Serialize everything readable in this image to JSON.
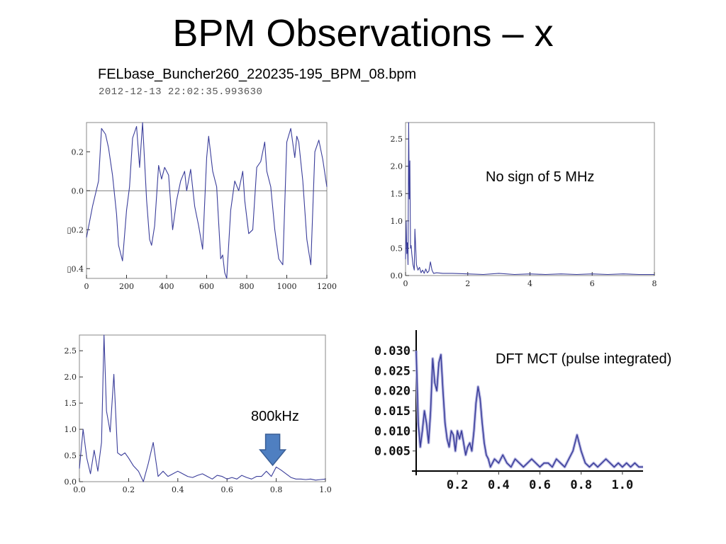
{
  "slide": {
    "title": "BPM Observations – x",
    "filename": "FELbase_Buncher260_220235-195_BPM_08.bpm",
    "timestamp": "2012-12-13 22:02:35.993630"
  },
  "colors": {
    "series": "#3a3d9a",
    "axis": "#222222",
    "frame": "#888888",
    "arrow_fill": "#4f7fc1",
    "arrow_stroke": "#3a5e95"
  },
  "chart_data": [
    {
      "type": "line",
      "xlim": [
        0,
        1200
      ],
      "ylim": [
        -0.45,
        0.35
      ],
      "xticks": [
        0,
        200,
        400,
        600,
        800,
        1000,
        1200
      ],
      "yticks": [
        0.2,
        0.0,
        -0.2,
        -0.4
      ],
      "ytick_labels": [
        "0.2",
        "0.0",
        "▯0.2",
        "▯0.4"
      ],
      "zero_line": true,
      "series": [
        {
          "x": [
            0,
            30,
            60,
            75,
            95,
            110,
            130,
            150,
            160,
            180,
            200,
            215,
            230,
            250,
            265,
            280,
            300,
            315,
            325,
            340,
            360,
            375,
            390,
            410,
            430,
            450,
            470,
            490,
            500,
            520,
            540,
            560,
            580,
            600,
            610,
            630,
            650,
            670,
            680,
            690,
            700,
            720,
            740,
            760,
            780,
            790,
            810,
            830,
            850,
            870,
            890,
            900,
            920,
            940,
            960,
            980,
            1000,
            1020,
            1040,
            1050,
            1060,
            1080,
            1100,
            1120,
            1140,
            1160,
            1180,
            1200
          ],
          "y": [
            -0.24,
            -0.08,
            0.05,
            0.32,
            0.29,
            0.22,
            0.08,
            -0.12,
            -0.28,
            -0.36,
            -0.1,
            0.02,
            0.27,
            0.33,
            0.12,
            0.35,
            -0.05,
            -0.25,
            -0.28,
            -0.18,
            0.13,
            0.06,
            0.12,
            0.08,
            -0.2,
            -0.05,
            0.05,
            0.1,
            0.0,
            0.11,
            -0.08,
            -0.18,
            -0.3,
            0.17,
            0.28,
            0.1,
            0.02,
            -0.35,
            -0.33,
            -0.42,
            -0.46,
            -0.1,
            0.05,
            0.0,
            0.1,
            -0.05,
            -0.22,
            -0.2,
            0.12,
            0.15,
            0.25,
            0.1,
            0.02,
            -0.2,
            -0.35,
            -0.38,
            0.25,
            0.32,
            0.17,
            0.28,
            0.25,
            0.05,
            -0.25,
            -0.38,
            0.2,
            0.26,
            0.16,
            0.02
          ]
        }
      ]
    },
    {
      "type": "line",
      "xlim": [
        0,
        8
      ],
      "ylim": [
        0,
        2.8
      ],
      "xticks": [
        0,
        2,
        4,
        6,
        8
      ],
      "yticks": [
        0.0,
        0.5,
        1.0,
        1.5,
        2.0,
        2.5
      ],
      "ytick_labels": [
        "0.0",
        "0.5",
        "1.0",
        "1.5",
        "2.0",
        "2.5"
      ],
      "annotation": "No sign of 5 MHz",
      "series": [
        {
          "x": [
            0,
            0.02,
            0.04,
            0.06,
            0.08,
            0.1,
            0.12,
            0.14,
            0.16,
            0.18,
            0.2,
            0.24,
            0.28,
            0.3,
            0.35,
            0.4,
            0.45,
            0.5,
            0.55,
            0.6,
            0.65,
            0.7,
            0.75,
            0.8,
            0.85,
            0.9,
            1.0,
            1.2,
            1.5,
            2.0,
            2.5,
            3.0,
            3.5,
            4.0,
            4.5,
            5.0,
            5.5,
            6.0,
            6.5,
            7.0,
            7.5,
            8.0
          ],
          "y": [
            0.3,
            1.0,
            0.4,
            0.6,
            0.2,
            2.8,
            1.4,
            2.1,
            0.5,
            0.55,
            0.4,
            0.2,
            0.1,
            0.85,
            0.2,
            0.1,
            0.15,
            0.05,
            0.1,
            0.04,
            0.12,
            0.05,
            0.08,
            0.25,
            0.1,
            0.04,
            0.05,
            0.04,
            0.04,
            0.03,
            0.02,
            0.04,
            0.02,
            0.03,
            0.02,
            0.03,
            0.02,
            0.03,
            0.02,
            0.03,
            0.02,
            0.02
          ]
        }
      ]
    },
    {
      "type": "line",
      "xlim": [
        0,
        1.0
      ],
      "ylim": [
        0,
        2.8
      ],
      "xticks": [
        0.0,
        0.2,
        0.4,
        0.6,
        0.8,
        1.0
      ],
      "yticks": [
        0.0,
        0.5,
        1.0,
        1.5,
        2.0,
        2.5
      ],
      "ytick_labels": [
        "0.0",
        "0.5",
        "1.0",
        "1.5",
        "2.0",
        "2.5"
      ],
      "xtick_labels": [
        "0.0",
        "0.2",
        "0.4",
        "0.6",
        "0.8",
        "1.0"
      ],
      "annotation": "800kHz",
      "arrow_at_x": 0.8,
      "series": [
        {
          "x": [
            0,
            0.015,
            0.03,
            0.045,
            0.06,
            0.075,
            0.09,
            0.1,
            0.11,
            0.125,
            0.14,
            0.155,
            0.17,
            0.185,
            0.2,
            0.22,
            0.24,
            0.26,
            0.28,
            0.3,
            0.32,
            0.34,
            0.36,
            0.38,
            0.4,
            0.42,
            0.44,
            0.46,
            0.48,
            0.5,
            0.52,
            0.54,
            0.56,
            0.58,
            0.6,
            0.62,
            0.64,
            0.66,
            0.68,
            0.7,
            0.72,
            0.74,
            0.76,
            0.78,
            0.8,
            0.82,
            0.84,
            0.86,
            0.88,
            0.9,
            0.92,
            0.94,
            0.96,
            0.98,
            1.0
          ],
          "y": [
            0.25,
            1.0,
            0.45,
            0.15,
            0.6,
            0.2,
            0.75,
            2.8,
            1.35,
            0.95,
            2.05,
            0.55,
            0.5,
            0.55,
            0.45,
            0.3,
            0.2,
            0.0,
            0.35,
            0.75,
            0.1,
            0.2,
            0.1,
            0.15,
            0.2,
            0.15,
            0.1,
            0.08,
            0.12,
            0.15,
            0.1,
            0.05,
            0.12,
            0.1,
            0.05,
            0.08,
            0.05,
            0.12,
            0.08,
            0.05,
            0.1,
            0.1,
            0.2,
            0.1,
            0.28,
            0.22,
            0.15,
            0.08,
            0.05,
            0.05,
            0.04,
            0.05,
            0.03,
            0.04,
            0.05
          ]
        }
      ]
    },
    {
      "type": "line",
      "xlim": [
        0,
        1.1
      ],
      "ylim": [
        0,
        0.033
      ],
      "xticks": [
        0.2,
        0.4,
        0.6,
        0.8,
        1.0
      ],
      "xtick_labels": [
        "0.2",
        "0.4",
        "0.6",
        "0.8",
        "1.0"
      ],
      "yticks": [
        0.005,
        0.01,
        0.015,
        0.02,
        0.025,
        0.03
      ],
      "ytick_labels": [
        "0.005",
        "0.010",
        "0.015",
        "0.020",
        "0.025",
        "0.030"
      ],
      "annotation": "DFT MCT (pulse integrated)",
      "series": [
        {
          "x": [
            0.0,
            0.01,
            0.02,
            0.03,
            0.04,
            0.05,
            0.06,
            0.07,
            0.08,
            0.09,
            0.1,
            0.11,
            0.12,
            0.13,
            0.14,
            0.15,
            0.16,
            0.17,
            0.18,
            0.19,
            0.2,
            0.21,
            0.22,
            0.23,
            0.24,
            0.25,
            0.26,
            0.27,
            0.28,
            0.29,
            0.3,
            0.31,
            0.32,
            0.33,
            0.34,
            0.35,
            0.36,
            0.38,
            0.4,
            0.42,
            0.44,
            0.46,
            0.48,
            0.5,
            0.52,
            0.54,
            0.56,
            0.58,
            0.6,
            0.62,
            0.64,
            0.66,
            0.68,
            0.7,
            0.72,
            0.74,
            0.76,
            0.78,
            0.8,
            0.82,
            0.84,
            0.86,
            0.88,
            0.9,
            0.92,
            0.94,
            0.96,
            0.98,
            1.0,
            1.02,
            1.04,
            1.06,
            1.08,
            1.1
          ],
          "y": [
            0.03,
            0.012,
            0.006,
            0.01,
            0.015,
            0.012,
            0.007,
            0.015,
            0.028,
            0.022,
            0.02,
            0.027,
            0.029,
            0.02,
            0.012,
            0.008,
            0.006,
            0.01,
            0.009,
            0.005,
            0.01,
            0.008,
            0.01,
            0.007,
            0.004,
            0.006,
            0.007,
            0.005,
            0.01,
            0.017,
            0.021,
            0.018,
            0.012,
            0.007,
            0.004,
            0.003,
            0.001,
            0.003,
            0.002,
            0.004,
            0.002,
            0.001,
            0.003,
            0.002,
            0.001,
            0.002,
            0.003,
            0.002,
            0.001,
            0.002,
            0.002,
            0.001,
            0.003,
            0.002,
            0.001,
            0.003,
            0.005,
            0.009,
            0.005,
            0.002,
            0.001,
            0.002,
            0.001,
            0.002,
            0.003,
            0.002,
            0.001,
            0.002,
            0.001,
            0.002,
            0.001,
            0.002,
            0.001,
            0.001
          ]
        }
      ]
    }
  ]
}
